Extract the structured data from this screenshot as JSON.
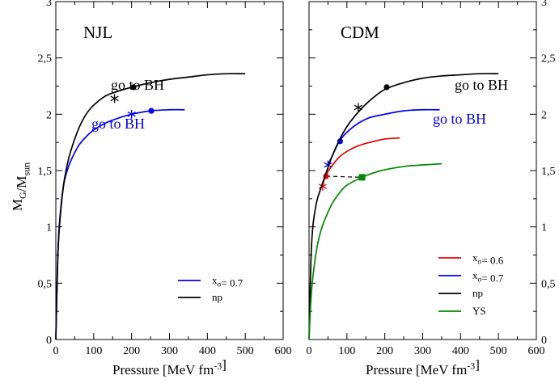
{
  "figure": {
    "ylabel": "M_G/M_sun",
    "ytick_labels": [
      "0",
      "0,5",
      "1",
      "1,5",
      "2",
      "2,5",
      "3"
    ],
    "xtick_labels": [
      "0",
      "100",
      "200",
      "300",
      "400",
      "500",
      "600"
    ]
  },
  "chart_data": [
    {
      "type": "line",
      "panel_label": "NJL",
      "xlabel": "Pressure [MeV fm^-3]",
      "ylabel": "M_G/M_sun",
      "xlim": [
        0,
        600
      ],
      "ylim": [
        0,
        3
      ],
      "grid": false,
      "legend_position": "bottom-right",
      "series": [
        {
          "name": "x_σ= 0.7",
          "color": "#0000ee",
          "x": [
            0,
            5,
            10,
            20,
            30,
            40,
            60,
            80,
            100,
            130,
            160,
            200,
            250,
            300,
            340
          ],
          "y": [
            0,
            0.72,
            1.05,
            1.36,
            1.5,
            1.59,
            1.72,
            1.8,
            1.86,
            1.92,
            1.96,
            2.0,
            2.03,
            2.04,
            2.04
          ],
          "markers": [
            {
              "kind": "star",
              "x": 200,
              "y": 2.0
            },
            {
              "kind": "dot",
              "x": 252,
              "y": 2.03
            }
          ]
        },
        {
          "name": "np",
          "color": "#000000",
          "x": [
            0,
            5,
            10,
            20,
            30,
            40,
            60,
            80,
            100,
            130,
            160,
            200,
            250,
            300,
            350,
            400,
            450,
            500
          ],
          "y": [
            0,
            0.7,
            1.02,
            1.36,
            1.55,
            1.68,
            1.87,
            2.0,
            2.08,
            2.16,
            2.2,
            2.24,
            2.28,
            2.31,
            2.33,
            2.35,
            2.36,
            2.36
          ],
          "markers": [
            {
              "kind": "star",
              "x": 155,
              "y": 2.14
            },
            {
              "kind": "dot",
              "x": 205,
              "y": 2.24
            }
          ]
        }
      ],
      "annotations": [
        {
          "text": "go to BH",
          "color": "#000000"
        },
        {
          "text": "go to BH",
          "color": "#0000ee"
        }
      ]
    },
    {
      "type": "line",
      "panel_label": "CDM",
      "xlabel": "Pressure [MeV fm^-3]",
      "ylabel": "",
      "xlim": [
        0,
        600
      ],
      "ylim": [
        0,
        3
      ],
      "grid": false,
      "legend_position": "bottom-right",
      "series": [
        {
          "name": "x_σ= 0.6",
          "color": "#ee0000",
          "x": [
            36,
            40,
            45,
            50,
            60,
            80,
            100,
            130,
            160,
            200,
            240
          ],
          "y": [
            1.36,
            1.42,
            1.45,
            1.49,
            1.54,
            1.62,
            1.67,
            1.72,
            1.75,
            1.78,
            1.79
          ],
          "markers": [
            {
              "kind": "star",
              "x": 36,
              "y": 1.36
            },
            {
              "kind": "dot",
              "x": 45,
              "y": 1.45
            }
          ]
        },
        {
          "name": "x_σ= 0.7",
          "color": "#0000ee",
          "x": [
            50,
            60,
            80,
            100,
            130,
            160,
            200,
            250,
            300,
            345
          ],
          "y": [
            1.55,
            1.62,
            1.76,
            1.84,
            1.92,
            1.97,
            2.0,
            2.03,
            2.04,
            2.04
          ],
          "markers": [
            {
              "kind": "star",
              "x": 50,
              "y": 1.55
            },
            {
              "kind": "dot",
              "x": 82,
              "y": 1.76
            }
          ]
        },
        {
          "name": "np",
          "color": "#000000",
          "x": [
            0,
            5,
            10,
            20,
            30,
            40,
            60,
            80,
            100,
            130,
            160,
            200,
            250,
            300,
            350,
            400,
            450,
            500
          ],
          "y": [
            0,
            0.7,
            1.0,
            1.22,
            1.33,
            1.43,
            1.62,
            1.77,
            1.89,
            2.02,
            2.12,
            2.22,
            2.28,
            2.32,
            2.34,
            2.35,
            2.36,
            2.36
          ],
          "markers": [
            {
              "kind": "star",
              "x": 130,
              "y": 2.06
            },
            {
              "kind": "dot",
              "x": 205,
              "y": 2.24
            }
          ]
        },
        {
          "name": "YS",
          "color": "#008800",
          "x": [
            0,
            5,
            10,
            20,
            30,
            40,
            60,
            80,
            100,
            140,
            180,
            220,
            260,
            300,
            350
          ],
          "y": [
            0,
            0.35,
            0.55,
            0.8,
            0.95,
            1.05,
            1.2,
            1.3,
            1.37,
            1.44,
            1.49,
            1.52,
            1.54,
            1.55,
            1.56
          ],
          "markers": [
            {
              "kind": "square",
              "x": 140,
              "y": 1.44
            }
          ]
        }
      ],
      "dashed_connector": {
        "color": "#000000",
        "from": [
          45,
          1.45
        ],
        "to": [
          140,
          1.44
        ]
      },
      "annotations": [
        {
          "text": "go to BH",
          "color": "#000000"
        },
        {
          "text": "go to BH",
          "color": "#0000ee"
        }
      ]
    }
  ]
}
